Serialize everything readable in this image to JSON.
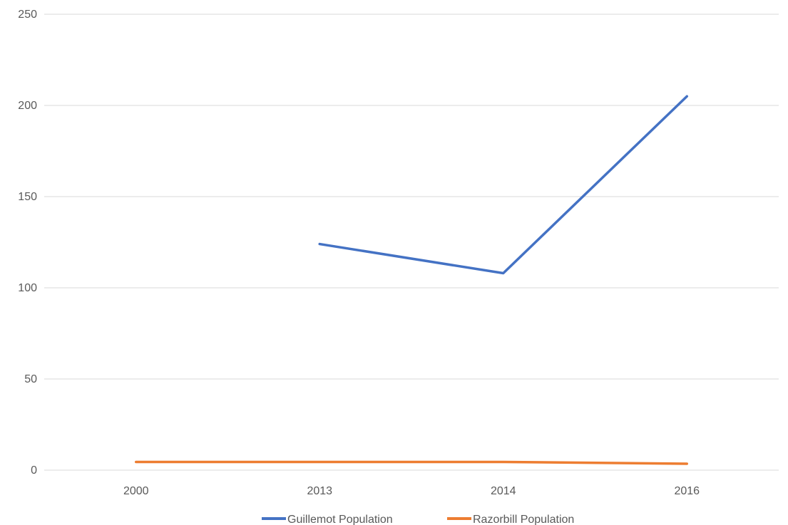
{
  "chart_data": {
    "type": "line",
    "title": "",
    "xlabel": "",
    "ylabel": "",
    "categories": [
      "2000",
      "2013",
      "2014",
      "2016"
    ],
    "ylim": [
      0,
      250
    ],
    "yticks": [
      0,
      50,
      100,
      150,
      200,
      250
    ],
    "grid": true,
    "legend_position": "bottom",
    "series": [
      {
        "name": "Guillemot Population",
        "color": "#4472c4",
        "values": [
          null,
          124,
          108,
          205
        ]
      },
      {
        "name": "Razorbill Population",
        "color": "#ed7d31",
        "values": [
          4.5,
          4.5,
          4.5,
          3.5
        ]
      }
    ]
  }
}
